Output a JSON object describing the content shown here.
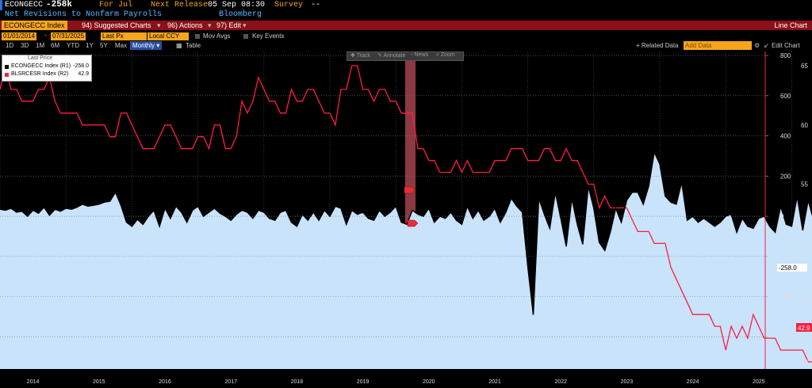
{
  "header": {
    "ticker": "ECONGECC",
    "value": "-258k",
    "period_label": "For Jul",
    "next_release_label": "Next Release",
    "next_release_value": "05 Sep 08:30",
    "survey_label": "Survey",
    "survey_value": "--",
    "description": "Net Revisions to Nonfarm Payrolls",
    "source": "Bloomberg"
  },
  "toolbar": {
    "security": "ECONGECC Index",
    "suggested_charts": "94) Suggested Charts",
    "actions": "96) Actions",
    "edit": "97) Edit",
    "chart_type": "Line Chart"
  },
  "controls": {
    "start_date": "01/01/2014",
    "end_date": "07/31/2025",
    "field": "Last Px",
    "currency": "Local CCY",
    "mov_avgs": "Mov Avgs",
    "key_events": "Key Events"
  },
  "ranges": {
    "items": [
      "1D",
      "3D",
      "1M",
      "6M",
      "YTD",
      "1Y",
      "5Y",
      "Max"
    ],
    "frequency": "Monthly",
    "table": "Table",
    "related_data": "+ Related Data",
    "add_data_placeholder": "Add Data",
    "edit_chart": "Edit Chart"
  },
  "chart_tools": [
    "Track",
    "Annotate",
    "News",
    "Zoom"
  ],
  "legend": {
    "title": "Last Price",
    "items": [
      {
        "name": "ECONGECC Index (R1)",
        "value": "-258.0",
        "color": "#ffffff"
      },
      {
        "name": "BLSRCESR Index (R2)",
        "value": "42.9",
        "color": "#ff2a4a"
      }
    ]
  },
  "last_value_labels": {
    "r1": "-258.0",
    "r2": "42.9"
  },
  "chart_data": [
    {
      "type": "area",
      "name": "ECONGECC Index (R1)",
      "axis": "R1",
      "ylim": [
        -760,
        820
      ],
      "yticks": [
        -600,
        -400,
        -200,
        0,
        200,
        400,
        600,
        800
      ],
      "xticks": [
        "2014",
        "2015",
        "2016",
        "2017",
        "2018",
        "2019",
        "2020",
        "2021",
        "2022",
        "2023",
        "2024",
        "2025"
      ],
      "x_start": "2014-01",
      "frequency": "monthly",
      "values": [
        35,
        30,
        40,
        20,
        25,
        0,
        30,
        15,
        45,
        5,
        35,
        25,
        40,
        35,
        45,
        60,
        50,
        55,
        60,
        70,
        75,
        120,
        55,
        -30,
        -50,
        -15,
        -40,
        0,
        30,
        -50,
        40,
        -10,
        50,
        20,
        -30,
        30,
        50,
        0,
        20,
        40,
        15,
        0,
        -20,
        10,
        30,
        20,
        -10,
        30,
        20,
        -10,
        -20,
        20,
        30,
        -30,
        -50,
        10,
        -20,
        20,
        -20,
        30,
        0,
        50,
        40,
        -40,
        30,
        10,
        20,
        -10,
        -20,
        30,
        0,
        20,
        50,
        -30,
        -40,
        30,
        10,
        0,
        40,
        -30,
        0,
        -10,
        20,
        -20,
        -40,
        50,
        -10,
        30,
        -20,
        0,
        40,
        -30,
        20,
        90,
        50,
        20,
        -250,
        -490,
        90,
        10,
        -60,
        120,
        -10,
        -150,
        90,
        -40,
        -140,
        150,
        40,
        -130,
        -170,
        -80,
        40,
        -30,
        80,
        120,
        120,
        60,
        150,
        320,
        260,
        100,
        70,
        60,
        170,
        -20,
        0,
        -30,
        -10,
        -30,
        -50,
        -30,
        0,
        10,
        -80,
        -10,
        -50,
        -60,
        -10,
        0,
        -50,
        -80,
        50,
        -40,
        -50,
        100,
        -70,
        80,
        -20,
        -40,
        -100,
        -80,
        -30,
        -20,
        -150,
        10,
        -20,
        -40,
        0,
        0,
        -60,
        -20,
        -100,
        -70,
        10,
        -20,
        -60,
        30,
        -100,
        -30,
        20,
        -70,
        -20,
        0,
        20,
        30,
        -258
      ]
    },
    {
      "type": "line",
      "name": "BLSRCESR Index (R2)",
      "axis": "R2",
      "ylim": [
        39.4,
        66.2
      ],
      "yticks": [
        40,
        45,
        50,
        55,
        60,
        65
      ],
      "x_start": "2014-01",
      "frequency": "monthly",
      "values": [
        63,
        65,
        63,
        63,
        62,
        62,
        62,
        63,
        63,
        64,
        62,
        61,
        61,
        61,
        61,
        60,
        60,
        60,
        60,
        60,
        59,
        59,
        61,
        61,
        60,
        59,
        58,
        58,
        58,
        59,
        60,
        60,
        59,
        58,
        58,
        58,
        59,
        59,
        58,
        60,
        60,
        58,
        58,
        59,
        62,
        61,
        62,
        64,
        63,
        62,
        62,
        61,
        61,
        63,
        62,
        62,
        63,
        63,
        62,
        61,
        61,
        60,
        63,
        63,
        65,
        65,
        63,
        63,
        62,
        63,
        63,
        62,
        62,
        61,
        61,
        61,
        58,
        58,
        57,
        57,
        56,
        56,
        56,
        57,
        56,
        57,
        56,
        56,
        56,
        56,
        57,
        57,
        57,
        58,
        58,
        58,
        57,
        57,
        57,
        58,
        58,
        57,
        57,
        58,
        57,
        57,
        56,
        55,
        55,
        53,
        54,
        53,
        53,
        53,
        53,
        52,
        51,
        51,
        51,
        50,
        50,
        50,
        48,
        47,
        46,
        45,
        44,
        44,
        44,
        44,
        43,
        43,
        41,
        43,
        42,
        43,
        42,
        44,
        43,
        42,
        42,
        42,
        41,
        41,
        41,
        41,
        41,
        40,
        40,
        40,
        39,
        39,
        40,
        40,
        40,
        41,
        41,
        40,
        41,
        42,
        42,
        42,
        42,
        42,
        43,
        43,
        43,
        43,
        42,
        43,
        43,
        42,
        43,
        43,
        43,
        44,
        44,
        44,
        43,
        43,
        42,
        43,
        43,
        43,
        43,
        42.9
      ]
    }
  ]
}
